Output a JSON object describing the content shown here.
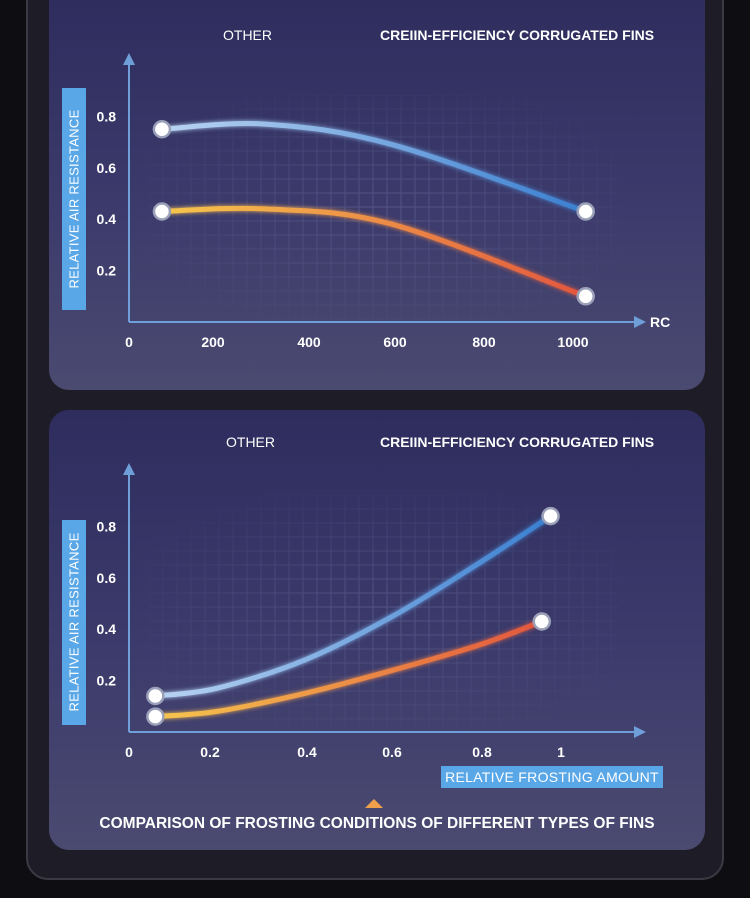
{
  "caption": "COMPARISON OF FROSTING CONDITIONS OF DIFFERENT TYPES OF FINS",
  "colors": {
    "other_start": "#b9d4f2",
    "other_end": "#3a7fd0",
    "corrugated_start": "#f6c64e",
    "corrugated_end": "#e2563e",
    "ylabel_bg": "#5aa7e8"
  },
  "chart_data": [
    {
      "type": "line",
      "legend": [
        "OTHER",
        "CREIIN-EFFICIENCY CORRUGATED FINS"
      ],
      "ylabel": "RELATIVE AIR RESISTANCE",
      "xlabel": "RC",
      "x_ticks": [
        "0",
        "200",
        "400",
        "600",
        "800",
        "1000"
      ],
      "y_ticks": [
        "0.2",
        "0.4",
        "0.6",
        "0.8"
      ],
      "xlim": [
        0,
        1150
      ],
      "ylim": [
        0,
        1.0
      ],
      "grid": true,
      "series": [
        {
          "name": "OTHER",
          "x": [
            75,
            310,
            600,
            1040
          ],
          "y": [
            0.75,
            0.77,
            0.69,
            0.43
          ]
        },
        {
          "name": "CREIIN-EFFICIENCY CORRUGATED FINS",
          "x": [
            75,
            310,
            600,
            1040
          ],
          "y": [
            0.43,
            0.44,
            0.38,
            0.1
          ]
        }
      ]
    },
    {
      "type": "line",
      "legend": [
        "OTHER",
        "CREIIN-EFFICIENCY CORRUGATED FINS"
      ],
      "ylabel": "RELATIVE AIR RESISTANCE",
      "xlabel": "RELATIVE FROSTING AMOUNT",
      "x_ticks": [
        "0",
        "0.2",
        "0.4",
        "0.6",
        "0.8",
        "1"
      ],
      "y_ticks": [
        "0.2",
        "0.4",
        "0.6",
        "0.8"
      ],
      "xlim": [
        0,
        1.15
      ],
      "ylim": [
        0,
        1.0
      ],
      "grid": true,
      "series": [
        {
          "name": "OTHER",
          "x": [
            0.06,
            0.2,
            0.4,
            0.6,
            0.8,
            0.96
          ],
          "y": [
            0.14,
            0.17,
            0.28,
            0.45,
            0.66,
            0.84
          ]
        },
        {
          "name": "CREIIN-EFFICIENCY CORRUGATED FINS",
          "x": [
            0.06,
            0.2,
            0.4,
            0.6,
            0.8,
            0.94
          ],
          "y": [
            0.06,
            0.08,
            0.15,
            0.24,
            0.34,
            0.43
          ]
        }
      ]
    }
  ]
}
